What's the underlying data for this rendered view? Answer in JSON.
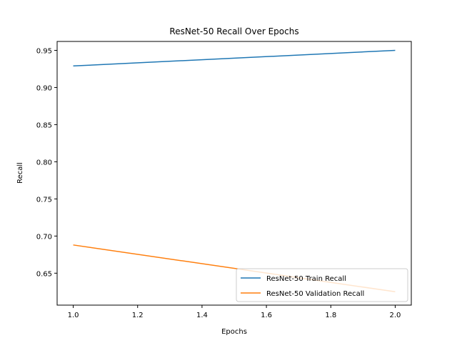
{
  "chart_data": {
    "type": "line",
    "title": "ResNet-50 Recall Over Epochs",
    "xlabel": "Epochs",
    "ylabel": "Recall",
    "xlim": [
      0.95,
      2.05
    ],
    "ylim": [
      0.607,
      0.962
    ],
    "x_ticks": [
      1.0,
      1.2,
      1.4,
      1.6,
      1.8,
      2.0
    ],
    "x_tick_labels": [
      "1.0",
      "1.2",
      "1.4",
      "1.6",
      "1.8",
      "2.0"
    ],
    "y_ticks": [
      0.65,
      0.7,
      0.75,
      0.8,
      0.85,
      0.9,
      0.95
    ],
    "y_tick_labels": [
      "0.65",
      "0.70",
      "0.75",
      "0.80",
      "0.85",
      "0.90",
      "0.95"
    ],
    "grid": false,
    "legend_position": "lower-right",
    "series": [
      {
        "name": "ResNet-50 Train Recall",
        "color": "#1f77b4",
        "x": [
          1,
          2
        ],
        "y": [
          0.929,
          0.95
        ]
      },
      {
        "name": "ResNet-50 Validation Recall",
        "color": "#ff7f0e",
        "x": [
          1,
          2
        ],
        "y": [
          0.688,
          0.625
        ]
      }
    ]
  }
}
